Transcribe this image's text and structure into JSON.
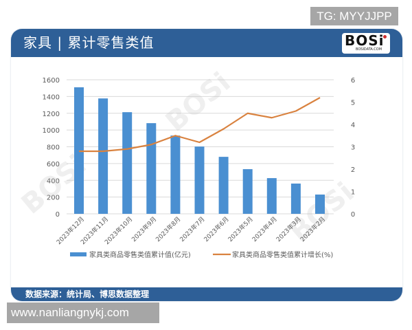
{
  "overlay": {
    "tg_label": "TG: MYYJJPP",
    "site_label": "www.nanliangnykj.com"
  },
  "card": {
    "title": "家具 | 累计零售类值",
    "logo_text": "BOSi",
    "logo_sub": "BOSIDATA.COM",
    "footer": "数据来源：统计局、博思数据整理",
    "header_color": "#2e5f97"
  },
  "chart_data": {
    "type": "bar+line",
    "title": "家具 | 累计零售类值",
    "categories": [
      "2023年12月",
      "2023年11月",
      "2023年10月",
      "2023年9月",
      "2023年8月",
      "2023年7月",
      "2023年6月",
      "2023年5月",
      "2023年4月",
      "2023年3月",
      "2023年2月"
    ],
    "series": [
      {
        "name": "家具类商品零售类值累计值(亿元)",
        "type": "bar",
        "axis": "left",
        "color": "#4a8fd1",
        "values": [
          1510,
          1377,
          1213,
          1082,
          934,
          803,
          680,
          533,
          426,
          361,
          230
        ]
      },
      {
        "name": "家具类商品零售类值累计增长(%)",
        "type": "line",
        "axis": "right",
        "color": "#d9823f",
        "values": [
          2.8,
          2.8,
          2.9,
          3.1,
          3.5,
          3.2,
          3.8,
          4.5,
          4.3,
          4.6,
          5.2
        ]
      }
    ],
    "left_axis": {
      "ylim": [
        0,
        1600
      ],
      "ticks": [
        0,
        200,
        400,
        600,
        800,
        1000,
        1200,
        1400,
        1600
      ]
    },
    "right_axis": {
      "ylim": [
        0,
        6
      ],
      "ticks": [
        0,
        1,
        2,
        3,
        4,
        5,
        6
      ]
    },
    "xlabel": "",
    "ylabel": "",
    "grid": true,
    "legend_position": "bottom"
  }
}
